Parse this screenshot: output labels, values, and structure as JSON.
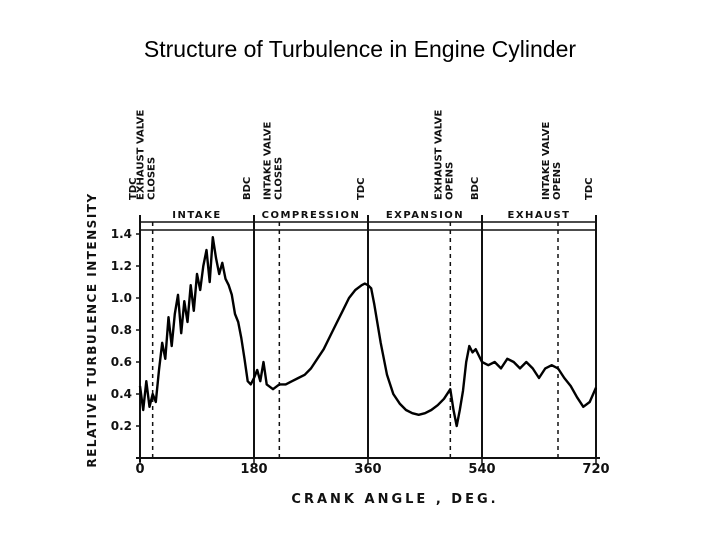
{
  "slide": {
    "title": "Structure of Turbulence in Engine Cylinder"
  },
  "chart_data": {
    "type": "line",
    "title": "",
    "xlabel": "CRANK ANGLE , DEG.",
    "ylabel": "RELATIVE TURBULENCE INTENSITY",
    "xlim": [
      0,
      720
    ],
    "ylim": [
      0,
      1.5
    ],
    "x_ticks": [
      0,
      180,
      360,
      540,
      720
    ],
    "x_tick_labels": [
      "0",
      "180",
      "360",
      "540",
      "720"
    ],
    "y_ticks": [
      0.2,
      0.4,
      0.6,
      0.8,
      1.0,
      1.2,
      1.4
    ],
    "y_tick_labels": [
      "0.2",
      "0.4",
      "0.6",
      "0.8",
      "1.0",
      "1.2",
      "1.4"
    ],
    "grid": false,
    "events": [
      {
        "x": 0,
        "label": "TDC",
        "style": "solid"
      },
      {
        "x": 20,
        "label": "EXHAUST VALVE CLOSES",
        "style": "dashed"
      },
      {
        "x": 180,
        "label": "BDC",
        "style": "solid"
      },
      {
        "x": 220,
        "label": "INTAKE VALVE CLOSES",
        "style": "dashed"
      },
      {
        "x": 360,
        "label": "TDC",
        "style": "solid"
      },
      {
        "x": 490,
        "label": "EXHAUST VALVE OPENS",
        "style": "dashed"
      },
      {
        "x": 540,
        "label": "BDC",
        "style": "solid"
      },
      {
        "x": 660,
        "label": "INTAKE VALVE OPENS",
        "style": "dashed"
      },
      {
        "x": 720,
        "label": "TDC",
        "style": "solid"
      }
    ],
    "strokes": [
      {
        "label": "INTAKE",
        "from": 0,
        "to": 180
      },
      {
        "label": "COMPRESSION",
        "from": 180,
        "to": 360
      },
      {
        "label": "EXPANSION",
        "from": 360,
        "to": 540
      },
      {
        "label": "EXHAUST",
        "from": 540,
        "to": 720
      }
    ],
    "series": [
      {
        "x": [
          0,
          5,
          10,
          15,
          20,
          25,
          30,
          35,
          40,
          45,
          50,
          55,
          60,
          65,
          70,
          75,
          80,
          85,
          90,
          95,
          100,
          105,
          110,
          115,
          120,
          125,
          130,
          135,
          140,
          145,
          150,
          155,
          160,
          165,
          170,
          175,
          180,
          185,
          190,
          195,
          200,
          210,
          220,
          230,
          240,
          250,
          260,
          270,
          280,
          290,
          300,
          310,
          320,
          330,
          340,
          350,
          355,
          360,
          365,
          370,
          380,
          390,
          400,
          410,
          420,
          430,
          440,
          450,
          460,
          470,
          480,
          490,
          495,
          500,
          505,
          510,
          515,
          520,
          525,
          530,
          540,
          550,
          560,
          570,
          580,
          590,
          600,
          610,
          620,
          630,
          640,
          650,
          660,
          670,
          680,
          690,
          700,
          710,
          720
        ],
        "y": [
          0.45,
          0.3,
          0.48,
          0.32,
          0.4,
          0.35,
          0.55,
          0.72,
          0.62,
          0.88,
          0.7,
          0.9,
          1.02,
          0.78,
          0.98,
          0.85,
          1.08,
          0.92,
          1.15,
          1.05,
          1.2,
          1.3,
          1.1,
          1.38,
          1.25,
          1.15,
          1.22,
          1.12,
          1.08,
          1.02,
          0.9,
          0.85,
          0.75,
          0.62,
          0.48,
          0.46,
          0.5,
          0.55,
          0.48,
          0.6,
          0.46,
          0.43,
          0.46,
          0.46,
          0.48,
          0.5,
          0.52,
          0.56,
          0.62,
          0.68,
          0.76,
          0.84,
          0.92,
          1.0,
          1.05,
          1.08,
          1.09,
          1.08,
          1.06,
          0.96,
          0.72,
          0.52,
          0.4,
          0.34,
          0.3,
          0.28,
          0.27,
          0.28,
          0.3,
          0.33,
          0.37,
          0.43,
          0.3,
          0.2,
          0.3,
          0.42,
          0.6,
          0.7,
          0.66,
          0.68,
          0.6,
          0.58,
          0.6,
          0.56,
          0.62,
          0.6,
          0.56,
          0.6,
          0.56,
          0.5,
          0.56,
          0.58,
          0.56,
          0.5,
          0.45,
          0.38,
          0.32,
          0.35,
          0.44
        ]
      }
    ]
  }
}
